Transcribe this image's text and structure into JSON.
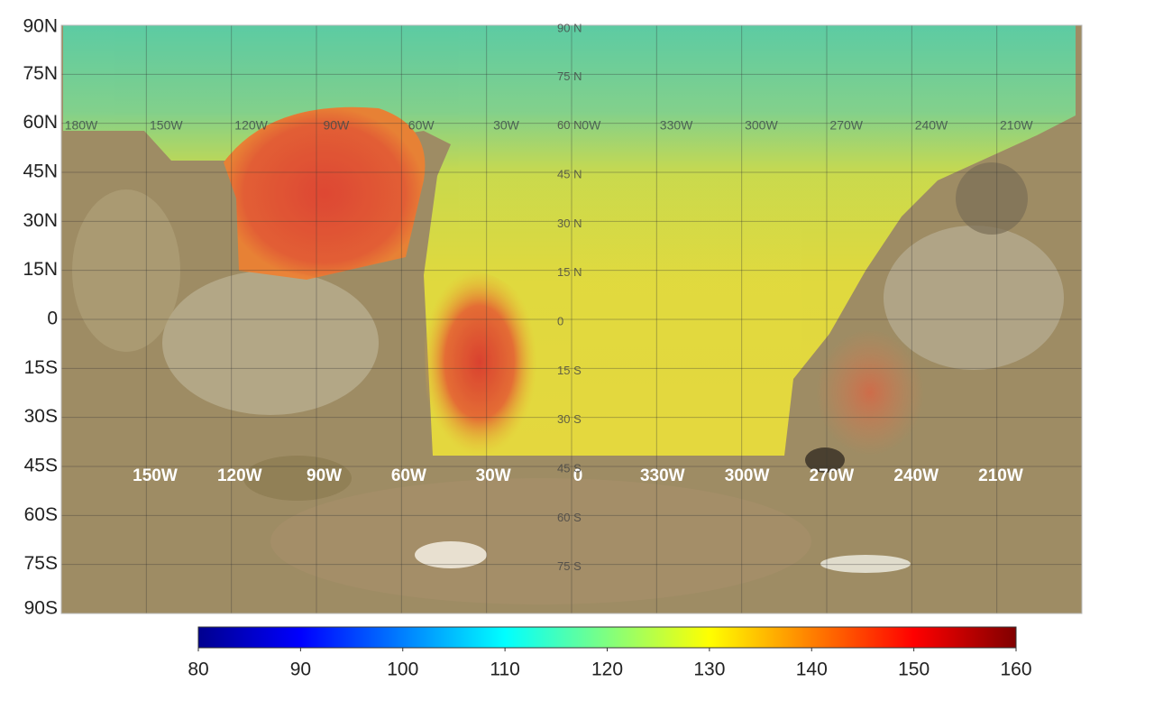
{
  "lat_labels": [
    "90N",
    "75N",
    "60N",
    "45N",
    "30N",
    "15N",
    "0",
    "15S",
    "30S",
    "45S",
    "60S",
    "75S",
    "90S"
  ],
  "lon_labels_top": [
    "180W",
    "150W",
    "120W",
    "90W",
    "60W",
    "30W",
    "0W",
    "330W",
    "300W",
    "270W",
    "240W",
    "210W"
  ],
  "lon_labels_bottom": [
    "150W",
    "120W",
    "90W",
    "60W",
    "30W",
    "0",
    "330W",
    "300W",
    "270W",
    "240W",
    "210W"
  ],
  "center_lat_labels": [
    "90 N",
    "75 N",
    "60 N",
    "45 N",
    "30 N",
    "15 N",
    "0",
    "15 S",
    "30 S",
    "45 S",
    "60 S",
    "75 S"
  ],
  "colorbar": {
    "range": [
      80,
      160
    ],
    "ticks": [
      80,
      90,
      100,
      110,
      120,
      130,
      140,
      150,
      160
    ]
  }
}
